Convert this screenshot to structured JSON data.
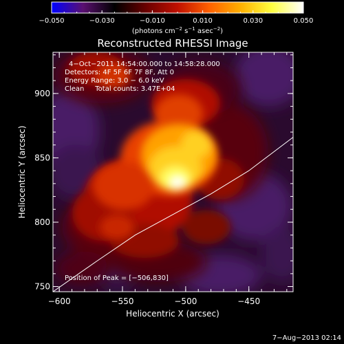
{
  "colorbar": {
    "tick_labels": [
      "−0.050",
      "−0.030",
      "−0.010",
      "0.010",
      "0.030",
      "0.050"
    ],
    "tick_values": [
      -0.05,
      -0.03,
      -0.01,
      0.01,
      0.03,
      0.05
    ],
    "range": [
      -0.05,
      0.05
    ],
    "units_prefix": "(photons cm",
    "units_sup1": "−2",
    "units_mid": " s",
    "units_sup2": "−1",
    "units_mid2": " asec",
    "units_sup3": "−2",
    "units_suffix": ")",
    "colors": [
      "#0000ff",
      "#5a1070",
      "#000000",
      "#6a0000",
      "#c01000",
      "#ff6000",
      "#ffb000",
      "#ffff40",
      "#ffffff"
    ]
  },
  "chart_data": {
    "type": "heatmap",
    "title": "Reconstructed RHESSI Image",
    "xlabel": "Heliocentric X (arcsec)",
    "ylabel": "Heliocentric Y (arcsec)",
    "xlim": [
      -605,
      -415
    ],
    "ylim": [
      746,
      932
    ],
    "x_ticks": [
      -600,
      -550,
      -500,
      -450
    ],
    "x_tick_labels": [
      "−600",
      "−550",
      "−500",
      "−450"
    ],
    "y_ticks": [
      750,
      800,
      850,
      900
    ],
    "y_tick_labels": [
      "750",
      "800",
      "850",
      "900"
    ],
    "peak": {
      "x": -506,
      "y": 830,
      "value": 0.05
    },
    "annotations": [
      "4−Oct−2011 14:54:00.000 to 14:58:28.000",
      "Detectors: 4F 5F 6F 7F 8F, Att 0",
      "Energy Range: 3.0 − 6.0 keV",
      "Clean     Total counts: 3.47E+04"
    ],
    "peak_label": "Position of Peak = [−506,830]",
    "limb_line": [
      [
        -605,
        746
      ],
      [
        -570,
        770
      ],
      [
        -540,
        790
      ],
      [
        -510,
        806
      ],
      [
        -480,
        822
      ],
      [
        -450,
        840
      ],
      [
        -415,
        866
      ]
    ]
  },
  "footer": {
    "timestamp": "7−Aug−2013 02:14"
  }
}
